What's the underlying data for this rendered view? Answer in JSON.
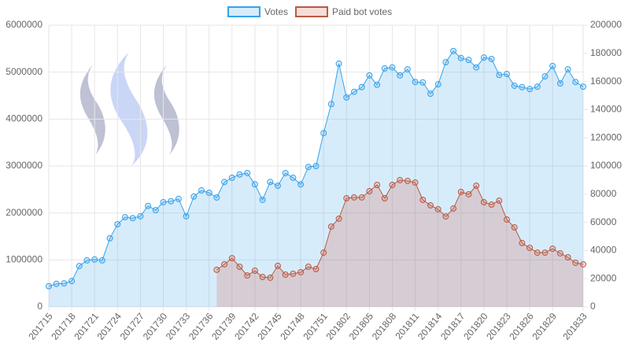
{
  "chart_data": {
    "type": "line",
    "categories": [
      "201715",
      null,
      null,
      "201718",
      null,
      null,
      "201721",
      null,
      null,
      "201724",
      null,
      null,
      "201727",
      null,
      null,
      "201730",
      null,
      null,
      "201733",
      null,
      null,
      "201736",
      null,
      null,
      "201739",
      null,
      null,
      "201742",
      null,
      null,
      "201745",
      null,
      null,
      "201748",
      null,
      null,
      "201751",
      null,
      null,
      "201802",
      null,
      null,
      "201805",
      null,
      null,
      "201808",
      null,
      null,
      "201811",
      null,
      null,
      "201814",
      null,
      null,
      "201817",
      null,
      null,
      "201820",
      null,
      null,
      "201823",
      null,
      null,
      "201826",
      null,
      null,
      "201829",
      null,
      null,
      null,
      "201833"
    ],
    "series": [
      {
        "name": "Votes",
        "color": "#36a2eb",
        "fill": "rgba(54,162,235,0.2)",
        "axis": "y",
        "values": [
          440000,
          490000,
          500000,
          550000,
          870000,
          990000,
          1010000,
          990000,
          1460000,
          1760000,
          1910000,
          1890000,
          1930000,
          2150000,
          2060000,
          2230000,
          2250000,
          2300000,
          1930000,
          2350000,
          2480000,
          2430000,
          2330000,
          2660000,
          2750000,
          2820000,
          2850000,
          2610000,
          2280000,
          2660000,
          2580000,
          2850000,
          2750000,
          2610000,
          2980000,
          3000000,
          3700000,
          4320000,
          5180000,
          4460000,
          4580000,
          4680000,
          4930000,
          4730000,
          5080000,
          5100000,
          4930000,
          5060000,
          4790000,
          4780000,
          4540000,
          4740000,
          5210000,
          5450000,
          5300000,
          5260000,
          5100000,
          5310000,
          5280000,
          4940000,
          4960000,
          4710000,
          4680000,
          4640000,
          4690000,
          4910000,
          5130000,
          4760000,
          5060000,
          4790000,
          4690000
        ]
      },
      {
        "name": "Paid bot votes",
        "color": "#b85a44",
        "fill": "rgba(214,96,72,0.22)",
        "axis": "y2",
        "values": [
          null,
          null,
          null,
          null,
          null,
          null,
          null,
          null,
          null,
          null,
          null,
          null,
          null,
          null,
          null,
          null,
          null,
          null,
          null,
          null,
          null,
          null,
          26300,
          30200,
          34600,
          28500,
          22300,
          25700,
          21200,
          20700,
          29100,
          22900,
          23500,
          24600,
          28500,
          26800,
          38500,
          57000,
          62600,
          77100,
          77700,
          77700,
          82100,
          86600,
          77100,
          86600,
          90000,
          89400,
          88300,
          76000,
          72100,
          69300,
          64200,
          69800,
          81600,
          79900,
          86000,
          74300,
          72600,
          75400,
          62000,
          56400,
          45300,
          41900,
          38500,
          38500,
          41300,
          38000,
          35200,
          31300,
          30200
        ]
      }
    ],
    "ylim": [
      0,
      6000000
    ],
    "yticks": [
      0,
      1000000,
      2000000,
      3000000,
      4000000,
      5000000,
      6000000
    ],
    "y2lim": [
      0,
      200000
    ],
    "y2ticks": [
      0,
      20000,
      40000,
      60000,
      80000,
      100000,
      120000,
      140000,
      160000,
      180000,
      200000
    ],
    "grid": true,
    "legend": "top"
  }
}
